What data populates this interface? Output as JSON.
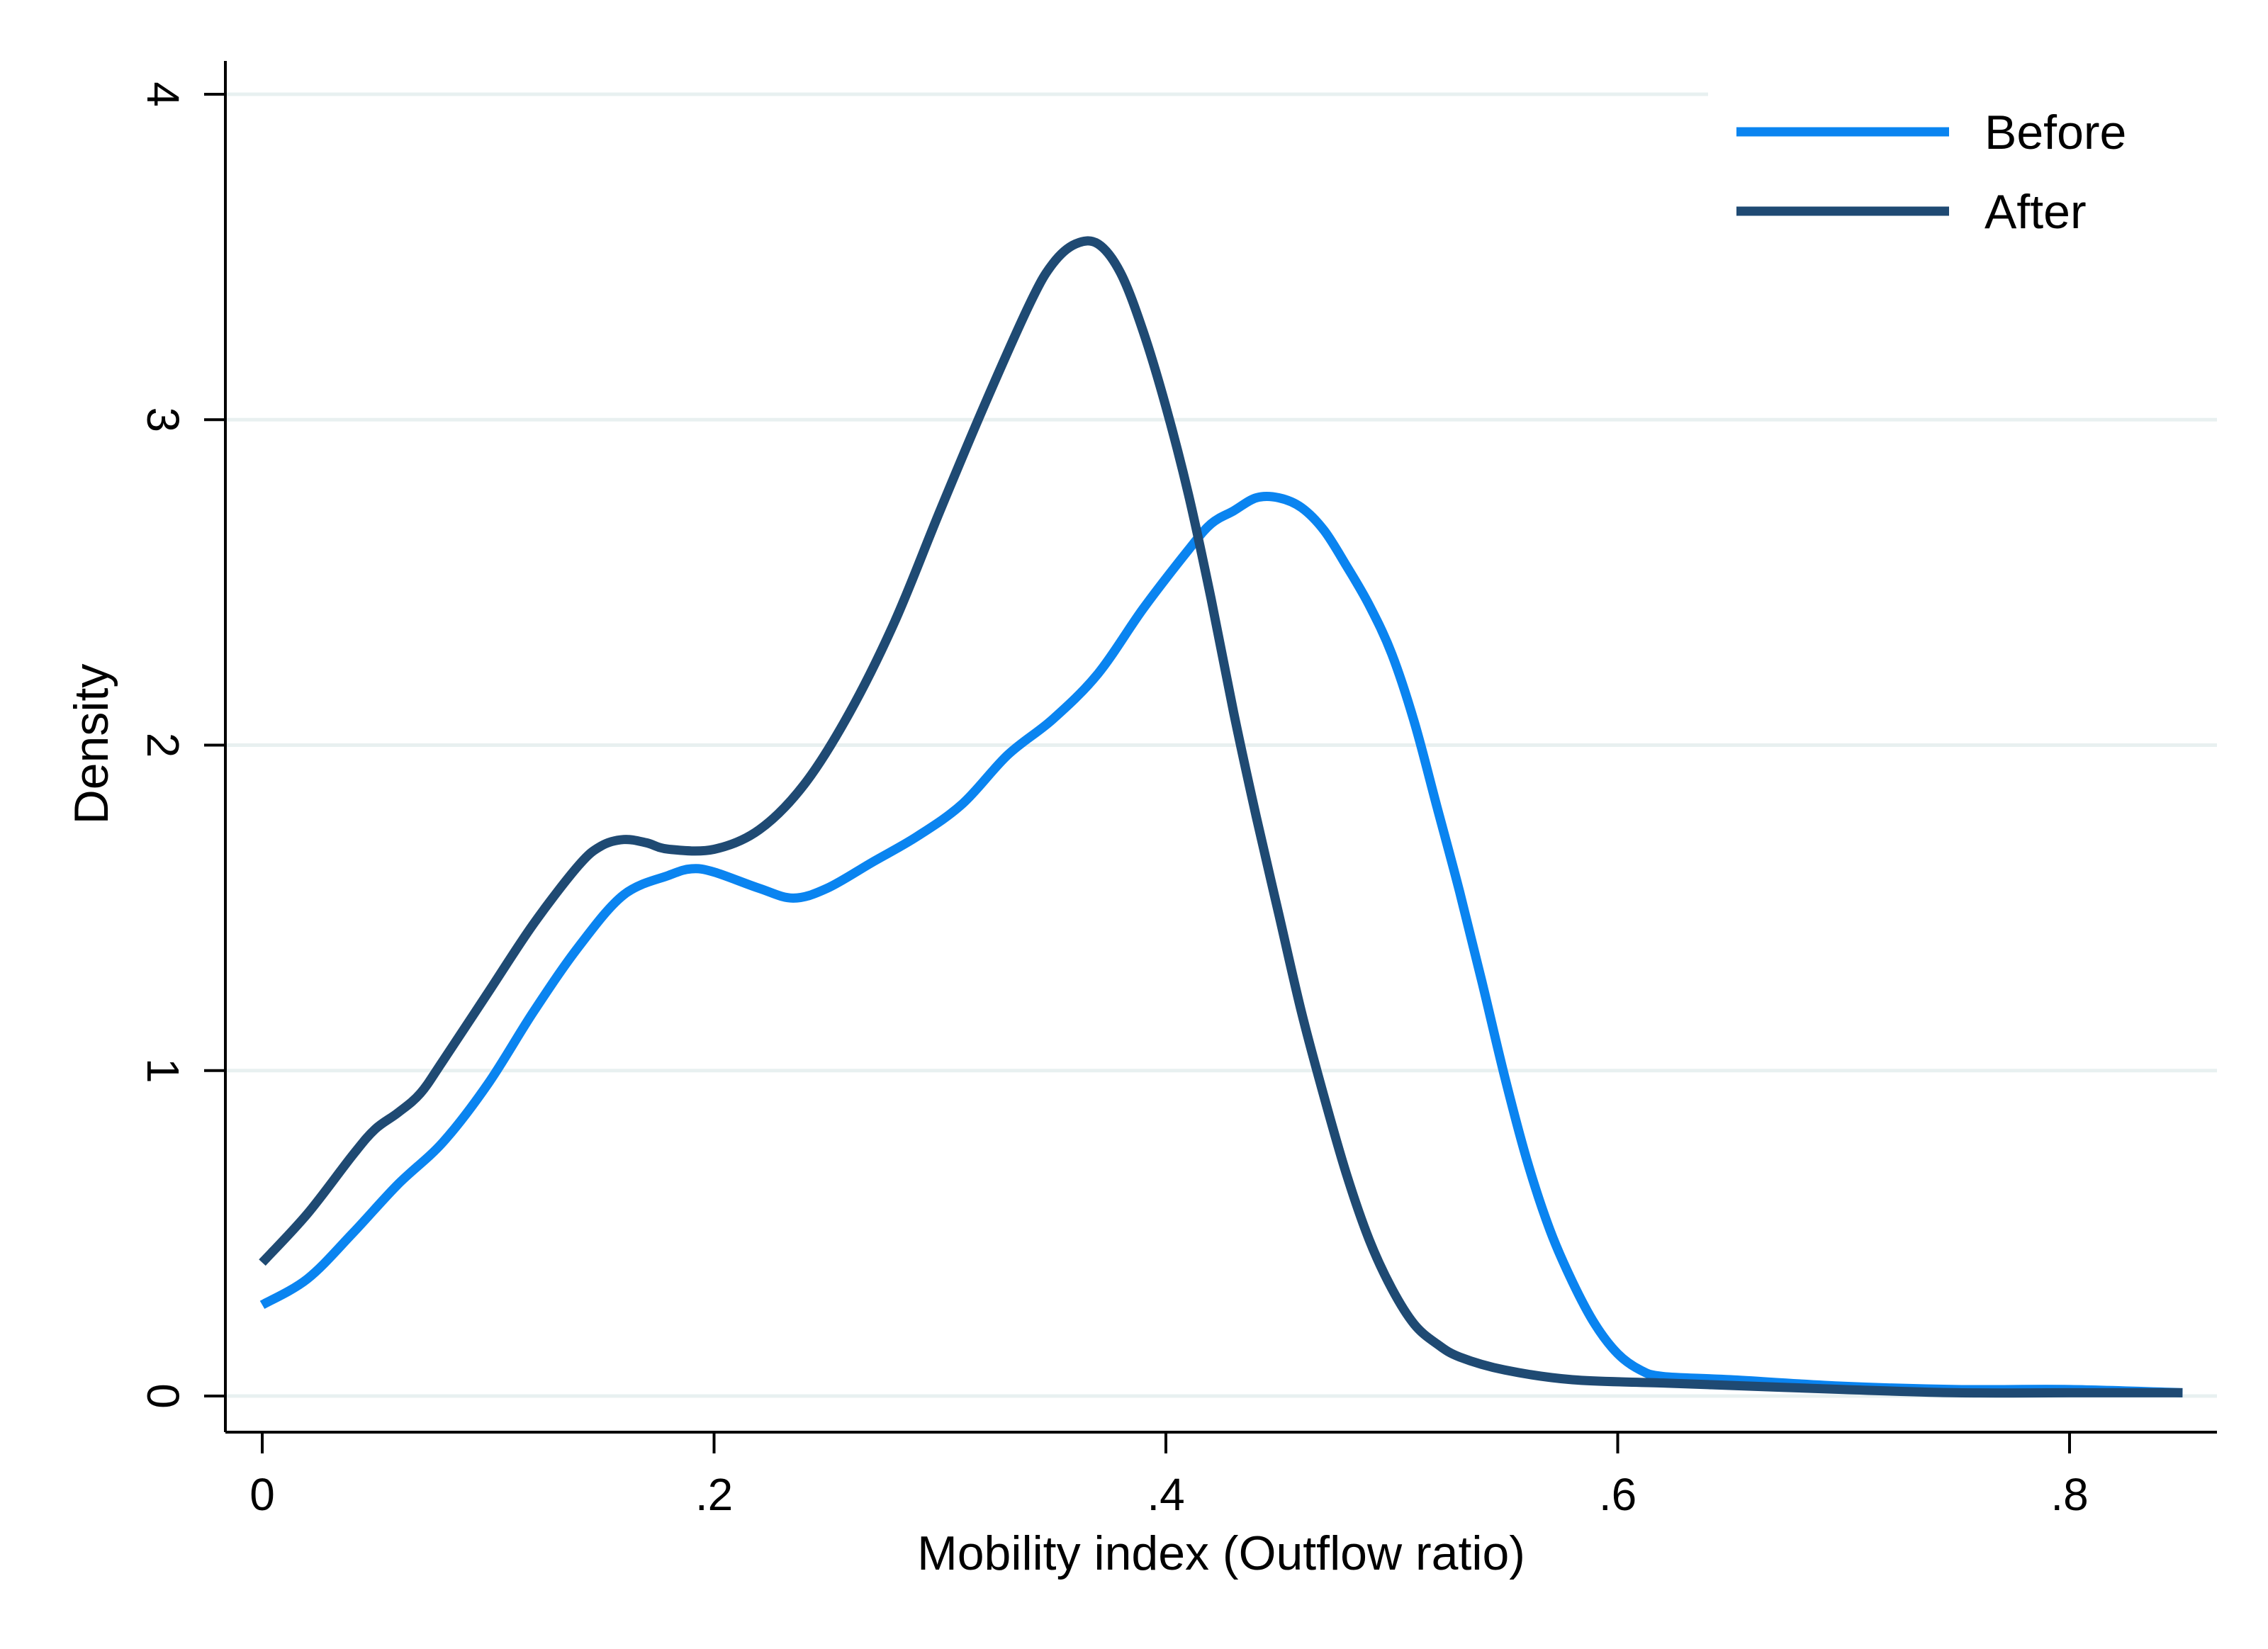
{
  "chart_data": {
    "type": "line",
    "title": "",
    "xlabel": "Mobility index (Outflow ratio)",
    "ylabel": "Density",
    "xlim": [
      0,
      0.85
    ],
    "ylim": [
      0,
      4
    ],
    "x_ticks": [
      {
        "value": 0,
        "label": "0"
      },
      {
        "value": 0.2,
        "label": ".2"
      },
      {
        "value": 0.4,
        "label": ".4"
      },
      {
        "value": 0.6,
        "label": ".6"
      },
      {
        "value": 0.8,
        "label": ".8"
      }
    ],
    "y_ticks": [
      {
        "value": 0,
        "label": "0"
      },
      {
        "value": 1,
        "label": "1"
      },
      {
        "value": 2,
        "label": "2"
      },
      {
        "value": 3,
        "label": "3"
      },
      {
        "value": 4,
        "label": "4"
      }
    ],
    "grid": "horizontal",
    "legend_position": "top-right",
    "series": [
      {
        "name": "Before",
        "color": "#0a84f0",
        "points": [
          [
            0.0,
            0.28
          ],
          [
            0.02,
            0.36
          ],
          [
            0.04,
            0.5
          ],
          [
            0.06,
            0.65
          ],
          [
            0.08,
            0.78
          ],
          [
            0.1,
            0.96
          ],
          [
            0.12,
            1.18
          ],
          [
            0.14,
            1.38
          ],
          [
            0.16,
            1.54
          ],
          [
            0.18,
            1.6
          ],
          [
            0.19,
            1.62
          ],
          [
            0.2,
            1.61
          ],
          [
            0.22,
            1.56
          ],
          [
            0.235,
            1.53
          ],
          [
            0.25,
            1.56
          ],
          [
            0.27,
            1.64
          ],
          [
            0.29,
            1.72
          ],
          [
            0.31,
            1.82
          ],
          [
            0.33,
            1.97
          ],
          [
            0.35,
            2.08
          ],
          [
            0.37,
            2.22
          ],
          [
            0.39,
            2.42
          ],
          [
            0.41,
            2.6
          ],
          [
            0.42,
            2.68
          ],
          [
            0.43,
            2.72
          ],
          [
            0.44,
            2.76
          ],
          [
            0.45,
            2.76
          ],
          [
            0.46,
            2.73
          ],
          [
            0.47,
            2.66
          ],
          [
            0.48,
            2.55
          ],
          [
            0.49,
            2.43
          ],
          [
            0.5,
            2.28
          ],
          [
            0.51,
            2.07
          ],
          [
            0.52,
            1.81
          ],
          [
            0.53,
            1.55
          ],
          [
            0.54,
            1.27
          ],
          [
            0.55,
            0.98
          ],
          [
            0.56,
            0.72
          ],
          [
            0.57,
            0.51
          ],
          [
            0.58,
            0.35
          ],
          [
            0.59,
            0.22
          ],
          [
            0.6,
            0.13
          ],
          [
            0.61,
            0.08
          ],
          [
            0.62,
            0.06
          ],
          [
            0.65,
            0.05
          ],
          [
            0.7,
            0.03
          ],
          [
            0.75,
            0.02
          ],
          [
            0.8,
            0.02
          ],
          [
            0.85,
            0.01
          ]
        ]
      },
      {
        "name": "After",
        "color": "#1f4a73",
        "points": [
          [
            0.0,
            0.41
          ],
          [
            0.02,
            0.56
          ],
          [
            0.04,
            0.74
          ],
          [
            0.05,
            0.82
          ],
          [
            0.06,
            0.87
          ],
          [
            0.07,
            0.93
          ],
          [
            0.08,
            1.03
          ],
          [
            0.1,
            1.24
          ],
          [
            0.12,
            1.45
          ],
          [
            0.14,
            1.63
          ],
          [
            0.15,
            1.69
          ],
          [
            0.16,
            1.71
          ],
          [
            0.17,
            1.7
          ],
          [
            0.18,
            1.68
          ],
          [
            0.2,
            1.68
          ],
          [
            0.22,
            1.74
          ],
          [
            0.24,
            1.88
          ],
          [
            0.26,
            2.1
          ],
          [
            0.28,
            2.38
          ],
          [
            0.3,
            2.72
          ],
          [
            0.32,
            3.05
          ],
          [
            0.34,
            3.36
          ],
          [
            0.35,
            3.48
          ],
          [
            0.36,
            3.54
          ],
          [
            0.37,
            3.54
          ],
          [
            0.38,
            3.45
          ],
          [
            0.39,
            3.27
          ],
          [
            0.4,
            3.04
          ],
          [
            0.41,
            2.77
          ],
          [
            0.42,
            2.45
          ],
          [
            0.43,
            2.1
          ],
          [
            0.44,
            1.78
          ],
          [
            0.45,
            1.48
          ],
          [
            0.46,
            1.18
          ],
          [
            0.47,
            0.92
          ],
          [
            0.48,
            0.68
          ],
          [
            0.49,
            0.48
          ],
          [
            0.5,
            0.33
          ],
          [
            0.51,
            0.22
          ],
          [
            0.52,
            0.16
          ],
          [
            0.53,
            0.12
          ],
          [
            0.55,
            0.08
          ],
          [
            0.58,
            0.05
          ],
          [
            0.62,
            0.04
          ],
          [
            0.66,
            0.03
          ],
          [
            0.7,
            0.02
          ],
          [
            0.75,
            0.01
          ],
          [
            0.8,
            0.01
          ],
          [
            0.85,
            0.01
          ]
        ]
      }
    ]
  }
}
